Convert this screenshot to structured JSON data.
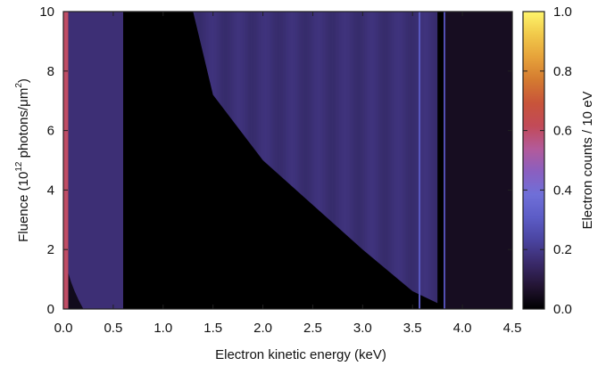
{
  "chart_data": {
    "type": "heatmap",
    "xlabel": "Electron kinetic energy (keV)",
    "ylabel": {
      "pre": "Fluence (10",
      "sup1": "12",
      "mid": " photons/",
      "mu": "μ",
      "m": "m",
      "sup2": "2",
      "post": ")"
    },
    "colorbar_label": "Electron counts / 10 eV",
    "xlim": [
      0,
      4.5
    ],
    "ylim": [
      0,
      10
    ],
    "clim": [
      0,
      1
    ],
    "x_ticks": [
      "0.0",
      "0.5",
      "1.0",
      "1.5",
      "2.0",
      "2.5",
      "3.0",
      "3.5",
      "4.0",
      "4.5"
    ],
    "y_ticks": [
      "0",
      "2",
      "4",
      "6",
      "8",
      "10"
    ],
    "colorbar_ticks": [
      "0.0",
      "0.2",
      "0.4",
      "0.6",
      "0.8",
      "1.0"
    ],
    "colormap": [
      "#000000",
      "#231433",
      "#3a2a6a",
      "#4a44a0",
      "#5c5cc6",
      "#6f6fd8",
      "#8a5fc0",
      "#b35a9a",
      "#c24a58",
      "#c8543a",
      "#d47a30",
      "#e6a23a",
      "#f1c94a",
      "#fff56b"
    ],
    "regions": [
      {
        "name": "low-energy edge (orange)",
        "x_range": [
          0.0,
          0.05
        ],
        "value": 0.6
      },
      {
        "name": "low-energy plateau",
        "x_range": [
          0.05,
          0.6
        ],
        "value": 0.17
      },
      {
        "name": "dark gap",
        "x_range": [
          0.6,
          1.4
        ],
        "value": 0.0
      },
      {
        "name": "fluence-dependent band",
        "x_range": [
          1.3,
          3.75
        ],
        "value": 0.18,
        "onset_fluence": [
          [
            1.3,
            10
          ],
          [
            1.5,
            7.2
          ],
          [
            2.0,
            5.0
          ],
          [
            2.5,
            3.5
          ],
          [
            3.0,
            2.0
          ],
          [
            3.5,
            0.6
          ],
          [
            3.75,
            0.2
          ]
        ]
      },
      {
        "name": "faint high-energy tail",
        "x_range": [
          3.82,
          4.5
        ],
        "value": 0.05
      }
    ],
    "lines": [
      {
        "x": 3.57,
        "value": 0.3
      },
      {
        "x": 3.82,
        "value": 0.27
      }
    ]
  }
}
